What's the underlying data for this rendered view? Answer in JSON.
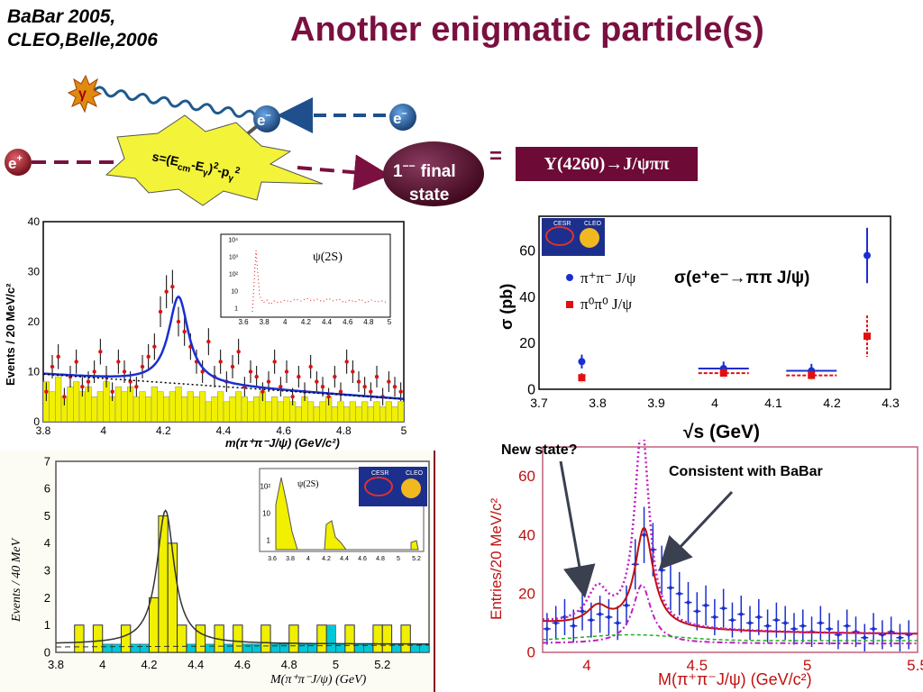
{
  "header": {
    "references": [
      "BaBar 2005,",
      "CLEO,Belle,2006"
    ],
    "title": "Another enigmatic particle(s)"
  },
  "diagram": {
    "gamma": "γ",
    "electron_left": "e",
    "electron_left_sup": "–",
    "electron_right": "e",
    "electron_right_sup": "–",
    "positron": "e",
    "positron_sup": "+",
    "burst_text": "s=(E",
    "burst_sub_cm": "cm",
    "burst_mid": "-E",
    "burst_sub_g": "γ",
    "burst_tail": ")",
    "burst_sq": "2",
    "burst_p": "-p",
    "burst_sub_g2": "γ",
    "burst_sq2": "2",
    "final_state_line1_num": "1",
    "final_state_line1_sup": "−−",
    "final_state_line1_word": "final",
    "final_state_line2": "state",
    "equals": "=",
    "upsilon_label": "Υ(4260)→J/ψππ"
  },
  "colors": {
    "title": "#7a1040",
    "burst": "#f3f33a",
    "ellipse": "#5a0d2c",
    "electron_circle": "#1f4f8c",
    "positron_circle": "#8a1020",
    "babar_fill": "#f0f000",
    "cleo_fill": "#f0f000",
    "cleo_bkg": "#00c8d8"
  },
  "chart_data": [
    {
      "type": "bar",
      "name": "babar",
      "xlabel": "m(π⁺π⁻J/ψ) (GeV/c²)",
      "ylabel": "Events / 20 MeV/c²",
      "xlim": [
        3.8,
        5.0
      ],
      "ylim": [
        0,
        40
      ],
      "xticks": [
        "3.8",
        "4",
        "4.2",
        "4.4",
        "4.6",
        "4.8",
        "5"
      ],
      "yticks": [
        "0",
        "10",
        "20",
        "30",
        "40"
      ],
      "inset": {
        "label": "ψ(2S)",
        "xticks": [
          "3.6",
          "3.8",
          "4",
          "4.2",
          "4.4",
          "4.6",
          "4.8",
          "5"
        ],
        "yticks": [
          "1",
          "10",
          "10²",
          "10³",
          "10⁴"
        ]
      },
      "x": [
        3.81,
        3.83,
        3.85,
        3.87,
        3.89,
        3.91,
        3.93,
        3.95,
        3.97,
        3.99,
        4.01,
        4.03,
        4.05,
        4.07,
        4.09,
        4.11,
        4.13,
        4.15,
        4.17,
        4.19,
        4.21,
        4.23,
        4.25,
        4.27,
        4.29,
        4.31,
        4.33,
        4.35,
        4.37,
        4.39,
        4.41,
        4.43,
        4.45,
        4.47,
        4.49,
        4.51,
        4.53,
        4.55,
        4.57,
        4.59,
        4.61,
        4.63,
        4.65,
        4.67,
        4.69,
        4.71,
        4.73,
        4.75,
        4.77,
        4.79,
        4.81,
        4.83,
        4.85,
        4.87,
        4.89,
        4.91,
        4.93,
        4.95,
        4.97,
        4.99
      ],
      "data_points": [
        6,
        11,
        13,
        5,
        9,
        12,
        7,
        8,
        10,
        14,
        9,
        6,
        12,
        10,
        8,
        7,
        11,
        13,
        15,
        22,
        26,
        27,
        20,
        18,
        15,
        12,
        10,
        16,
        9,
        12,
        8,
        11,
        14,
        7,
        10,
        9,
        6,
        8,
        12,
        7,
        10,
        5,
        9,
        6,
        11,
        8,
        7,
        5,
        9,
        6,
        12,
        10,
        8,
        7,
        6,
        9,
        5,
        8,
        7,
        6
      ],
      "background": [
        8,
        6,
        9,
        5,
        7,
        8,
        6,
        7,
        5,
        6,
        8,
        5,
        7,
        6,
        7,
        5,
        6,
        5,
        7,
        6,
        5,
        6,
        7,
        5,
        6,
        5,
        6,
        4,
        5,
        6,
        4,
        5,
        6,
        5,
        4,
        5,
        6,
        4,
        5,
        4,
        5,
        4,
        3,
        5,
        4,
        3,
        4,
        5,
        3,
        4,
        3,
        4,
        3,
        4,
        3,
        4,
        3,
        4,
        3,
        4
      ],
      "fit_peak": 4.25,
      "fit_max": 25,
      "fit_baseline": [
        9.5,
        4.5
      ]
    },
    {
      "type": "scatter",
      "name": "cross-section",
      "xlabel": "√s (GeV)",
      "ylabel": "σ (pb)",
      "title": "σ(e⁺e⁻→ππ J/ψ)",
      "xlim": [
        3.7,
        4.3
      ],
      "ylim": [
        0,
        75
      ],
      "xticks": [
        "3.7",
        "3.8",
        "3.9",
        "4",
        "4.1",
        "4.2",
        "4.3"
      ],
      "yticks": [
        "0",
        "20",
        "40",
        "60"
      ],
      "series": [
        {
          "name": "π⁺π⁻ J/ψ",
          "color": "#1a2fd0",
          "x": [
            3.773,
            4.015,
            4.165,
            4.26
          ],
          "y": [
            12,
            9,
            8,
            58
          ]
        },
        {
          "name": "π⁰π⁰ J/ψ",
          "color": "#e01010",
          "x": [
            3.773,
            4.015,
            4.165,
            4.26
          ],
          "y": [
            5,
            7,
            6,
            23
          ]
        }
      ],
      "logos": [
        "CESR",
        "CLEO"
      ]
    },
    {
      "type": "bar",
      "name": "cleo",
      "xlabel": "M(π⁺π⁻J/ψ)  (GeV)",
      "ylabel": "Events / 40 MeV",
      "xlim": [
        3.8,
        5.4
      ],
      "ylim": [
        0,
        7
      ],
      "xticks": [
        "3.8",
        "4",
        "4.2",
        "4.4",
        "4.6",
        "4.8",
        "5",
        "5.2"
      ],
      "yticks": [
        "0",
        "1",
        "2",
        "3",
        "4",
        "5",
        "6",
        "7"
      ],
      "x": [
        3.82,
        3.86,
        3.9,
        3.94,
        3.98,
        4.02,
        4.06,
        4.1,
        4.14,
        4.18,
        4.22,
        4.26,
        4.3,
        4.34,
        4.38,
        4.42,
        4.46,
        4.5,
        4.54,
        4.58,
        4.62,
        4.66,
        4.7,
        4.74,
        4.78,
        4.82,
        4.86,
        4.9,
        4.94,
        4.98,
        5.02,
        5.06,
        5.1,
        5.14,
        5.18,
        5.22,
        5.26,
        5.3,
        5.34,
        5.38
      ],
      "values": [
        0,
        0,
        1,
        0,
        1,
        0,
        0,
        1,
        0,
        0,
        2,
        5,
        4,
        1,
        0,
        1,
        0,
        1,
        0,
        1,
        0,
        0,
        1,
        0,
        0,
        1,
        0,
        0,
        1,
        0,
        0,
        1,
        0,
        0,
        1,
        1,
        0,
        1,
        0,
        0
      ],
      "background": [
        0,
        0,
        0,
        0,
        0,
        0.3,
        0.3,
        0.3,
        0.3,
        0.3,
        0.3,
        0.3,
        0.3,
        0.3,
        0.3,
        0.3,
        0.3,
        0.3,
        0.3,
        0.3,
        0.3,
        0.3,
        0.3,
        0.3,
        0.3,
        0.7,
        0.3,
        0.3,
        0.3,
        1,
        0.3,
        0.3,
        0.3,
        0.3,
        0.3,
        0.3,
        0.3,
        0.3,
        0.3,
        0.3
      ],
      "inset": {
        "label": "ψ(2S)",
        "xticks": [
          "3.6",
          "3.8",
          "4",
          "4.2",
          "4.4",
          "4.6",
          "4.8",
          "5",
          "5.2"
        ],
        "yticks": [
          "1",
          "10",
          "10²"
        ]
      },
      "logos": [
        "CESR",
        "CLEO"
      ]
    },
    {
      "type": "scatter",
      "name": "belle",
      "xlabel": "M(π⁺π⁻J/ψ) (GeV/c²)",
      "ylabel": "Entries/20 MeV/c²",
      "xlim": [
        3.8,
        5.5
      ],
      "ylim": [
        0,
        70
      ],
      "xticks": [
        "4",
        "4.5",
        "5",
        "5.5"
      ],
      "yticks": [
        "0",
        "20",
        "40",
        "60"
      ],
      "annotations": [
        "New state?",
        "Consistent with BaBar"
      ],
      "x": [
        3.82,
        3.86,
        3.9,
        3.94,
        3.98,
        4.02,
        4.06,
        4.1,
        4.14,
        4.18,
        4.22,
        4.26,
        4.3,
        4.34,
        4.38,
        4.42,
        4.46,
        4.5,
        4.54,
        4.58,
        4.62,
        4.66,
        4.7,
        4.74,
        4.78,
        4.82,
        4.86,
        4.9,
        4.94,
        4.98,
        5.02,
        5.06,
        5.1,
        5.14,
        5.18,
        5.22,
        5.26,
        5.3,
        5.34,
        5.38,
        5.42,
        5.46
      ],
      "y": [
        8,
        10,
        12,
        9,
        14,
        11,
        13,
        12,
        10,
        16,
        30,
        40,
        35,
        28,
        22,
        20,
        17,
        14,
        16,
        12,
        15,
        11,
        13,
        10,
        12,
        9,
        11,
        10,
        8,
        9,
        7,
        10,
        8,
        6,
        9,
        7,
        5,
        8,
        6,
        7,
        5,
        6
      ]
    }
  ]
}
